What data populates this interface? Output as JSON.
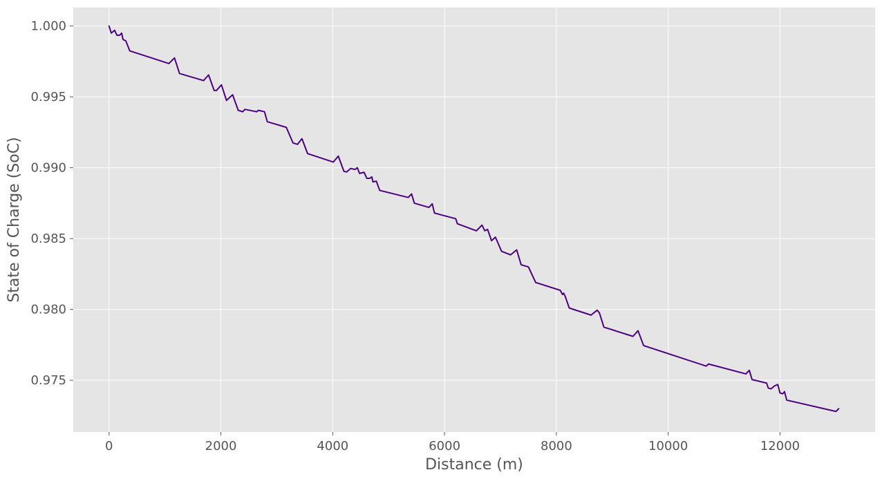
{
  "chart_data": {
    "type": "line",
    "title": "",
    "xlabel": "Distance (m)",
    "ylabel": "State of Charge (SoC)",
    "xlim": [
      -640,
      13700
    ],
    "ylim": [
      0.97135,
      1.0013
    ],
    "xticks": [
      0,
      2000,
      4000,
      6000,
      8000,
      10000,
      12000
    ],
    "xtick_labels": [
      "0",
      "2000",
      "4000",
      "6000",
      "8000",
      "10000",
      "12000"
    ],
    "yticks": [
      0.975,
      0.98,
      0.985,
      0.99,
      0.995,
      1.0
    ],
    "ytick_labels": [
      "0.975",
      "0.980",
      "0.985",
      "0.990",
      "0.995",
      "1.000"
    ],
    "grid": true,
    "legend": false,
    "style": {
      "line_color": "#4b0082",
      "background": "#e5e5e5"
    },
    "series": [
      {
        "x": [
          0,
          40,
          100,
          140,
          190,
          225,
          250,
          300,
          370,
          1070,
          1170,
          1260,
          1690,
          1780,
          1880,
          1920,
          2010,
          2100,
          2210,
          2310,
          2390,
          2430,
          2640,
          2670,
          2780,
          2830,
          3170,
          3290,
          3370,
          3450,
          3550,
          4010,
          4100,
          4200,
          4250,
          4320,
          4400,
          4440,
          4480,
          4560,
          4610,
          4660,
          4700,
          4720,
          4780,
          4840,
          5350,
          5410,
          5460,
          5720,
          5780,
          5820,
          6200,
          6230,
          6570,
          6670,
          6720,
          6770,
          6840,
          6910,
          7020,
          7180,
          7290,
          7370,
          7500,
          7630,
          8070,
          8110,
          8130,
          8160,
          8230,
          8620,
          8730,
          8770,
          8850,
          9370,
          9460,
          9560,
          10680,
          10720,
          11390,
          11450,
          11500,
          11760,
          11790,
          11840,
          11900,
          11960,
          12000,
          12050,
          12080,
          12120,
          13000,
          13050
        ],
        "y": [
          1.0,
          0.9995,
          0.9997,
          0.99935,
          0.99935,
          0.9995,
          0.99905,
          0.99895,
          0.99825,
          0.99735,
          0.99775,
          0.99665,
          0.99615,
          0.99655,
          0.99545,
          0.99545,
          0.99585,
          0.99475,
          0.99515,
          0.99405,
          0.99395,
          0.99412,
          0.99395,
          0.99405,
          0.99395,
          0.99325,
          0.99285,
          0.99175,
          0.99165,
          0.99205,
          0.991,
          0.9904,
          0.99082,
          0.98975,
          0.9897,
          0.98995,
          0.98988,
          0.99,
          0.9896,
          0.98968,
          0.98925,
          0.98925,
          0.98935,
          0.989,
          0.98905,
          0.9884,
          0.9879,
          0.98815,
          0.9875,
          0.9872,
          0.98745,
          0.9868,
          0.9864,
          0.98605,
          0.98555,
          0.98595,
          0.98555,
          0.98565,
          0.98485,
          0.9851,
          0.9841,
          0.98385,
          0.9842,
          0.98315,
          0.983,
          0.9819,
          0.98135,
          0.98105,
          0.98115,
          0.9809,
          0.9801,
          0.9796,
          0.97995,
          0.97975,
          0.97875,
          0.9781,
          0.9785,
          0.97745,
          0.976,
          0.97615,
          0.97545,
          0.9757,
          0.97505,
          0.9748,
          0.97445,
          0.9744,
          0.9746,
          0.9747,
          0.9741,
          0.97405,
          0.9742,
          0.9736,
          0.9728,
          0.973
        ]
      }
    ]
  }
}
